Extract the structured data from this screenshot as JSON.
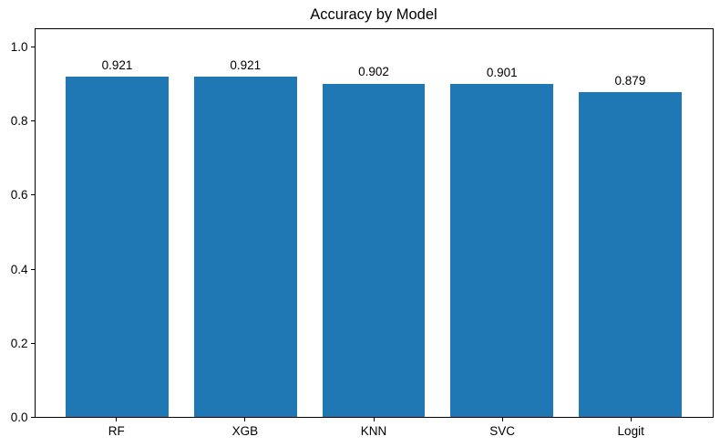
{
  "chart_data": {
    "type": "bar",
    "title": "Accuracy by Model",
    "categories": [
      "RF",
      "XGB",
      "KNN",
      "SVC",
      "Logit"
    ],
    "values": [
      0.921,
      0.921,
      0.902,
      0.901,
      0.879
    ],
    "value_labels": [
      "0.921",
      "0.921",
      "0.902",
      "0.901",
      "0.879"
    ],
    "ytick_labels": [
      "0.0",
      "0.2",
      "0.4",
      "0.6",
      "0.8",
      "1.0"
    ],
    "yticks": [
      0.0,
      0.2,
      0.4,
      0.6,
      0.8,
      1.0
    ],
    "ylim": [
      0,
      1.05
    ],
    "xlim": [
      -0.64,
      4.64
    ],
    "bar_width_units": 0.8,
    "xlabel": "",
    "ylabel": "",
    "grid": false,
    "legend_position": "none",
    "bar_color": "#1f77b4",
    "text_color": "#000000",
    "background_color": "#ffffff"
  }
}
